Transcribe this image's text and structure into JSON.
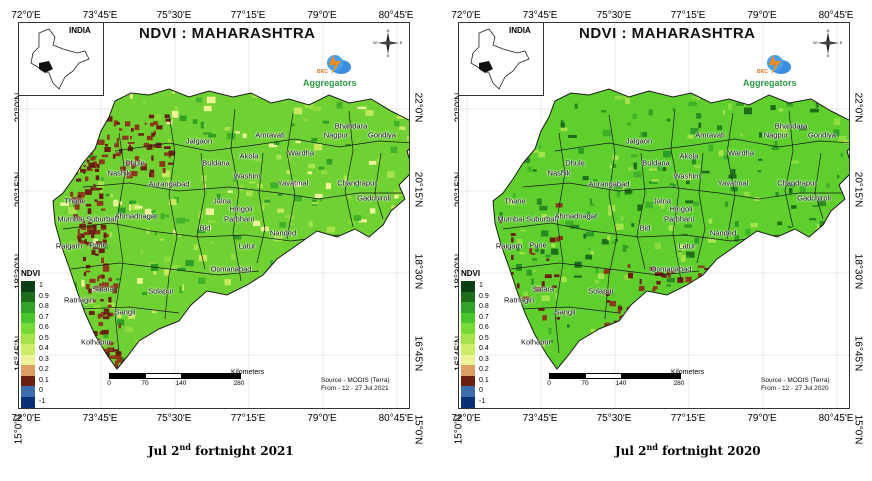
{
  "maps": [
    {
      "title": "NDVI : MAHARASHTRA",
      "inset_label": "INDIA",
      "logo": {
        "top": "BKC",
        "name": "Aggregators"
      },
      "compass_letters": [
        "N",
        "E",
        "S",
        "W"
      ],
      "lon_labels": [
        "72°0'E",
        "73°45'E",
        "75°30'E",
        "77°15'E",
        "79°0'E",
        "80°45'E"
      ],
      "lat_labels": [
        "22°0'N",
        "20°15'N",
        "18°30'N",
        "16°45'N",
        "15°0'N"
      ],
      "legend": {
        "title": "NDVI",
        "entries": [
          {
            "label": "1",
            "color": "#0b3f14"
          },
          {
            "label": "0.9",
            "color": "#1d6d1d"
          },
          {
            "label": "0.8",
            "color": "#32a228"
          },
          {
            "label": "0.7",
            "color": "#4ac62c"
          },
          {
            "label": "0.6",
            "color": "#76d936"
          },
          {
            "label": "0.5",
            "color": "#a6e34a"
          },
          {
            "label": "0.4",
            "color": "#d0ed6a"
          },
          {
            "label": "0.3",
            "color": "#eef39a"
          },
          {
            "label": "0.2",
            "color": "#d9a064"
          },
          {
            "label": "0.1",
            "color": "#6a1f0f"
          },
          {
            "label": "0",
            "color": "#3d6fb0"
          },
          {
            "label": "-1",
            "color": "#0b2f73"
          }
        ]
      },
      "scale": {
        "unit": "Kilometers",
        "ticks": [
          "0",
          "70",
          "140",
          "280"
        ]
      },
      "source": [
        "Source - MODIS (Terra)",
        "From - 12 - 27 Jul 2021"
      ],
      "caption": {
        "prefix": "Jul 2",
        "sup": "nd",
        "suffix": " fortnight 2021"
      },
      "condition": "dry"
    },
    {
      "title": "NDVI : MAHARASHTRA",
      "inset_label": "INDIA",
      "logo": {
        "top": "BKC",
        "name": "Aggregators"
      },
      "compass_letters": [
        "N",
        "E",
        "S",
        "W"
      ],
      "lon_labels": [
        "72°0'E",
        "73°45'E",
        "75°30'E",
        "77°15'E",
        "79°0'E",
        "80°45'E"
      ],
      "lat_labels": [
        "22°0'N",
        "20°15'N",
        "18°30'N",
        "16°45'N",
        "15°0'N"
      ],
      "legend": {
        "title": "NDVI",
        "entries": [
          {
            "label": "1",
            "color": "#0b3f14"
          },
          {
            "label": "0.9",
            "color": "#1d6d1d"
          },
          {
            "label": "0.8",
            "color": "#32a228"
          },
          {
            "label": "0.7",
            "color": "#4ac62c"
          },
          {
            "label": "0.6",
            "color": "#76d936"
          },
          {
            "label": "0.5",
            "color": "#a6e34a"
          },
          {
            "label": "0.4",
            "color": "#d0ed6a"
          },
          {
            "label": "0.3",
            "color": "#eef39a"
          },
          {
            "label": "0.2",
            "color": "#d9a064"
          },
          {
            "label": "0.1",
            "color": "#6a1f0f"
          },
          {
            "label": "0",
            "color": "#3d6fb0"
          },
          {
            "label": "-1",
            "color": "#0b2f73"
          }
        ]
      },
      "scale": {
        "unit": "Kilometers",
        "ticks": [
          "0",
          "70",
          "140",
          "280"
        ]
      },
      "source": [
        "Source - MODIS (Terra)",
        "From - 12 - 27 Jul 2020"
      ],
      "caption": {
        "prefix": "Jul 2",
        "sup": "nd",
        "suffix": " fortnight 2020"
      },
      "condition": "green"
    }
  ],
  "districts": [
    "Bhandara",
    "Nagpur",
    "Gondiya",
    "Amravati",
    "Dhule",
    "Jalgaon",
    "Wardha",
    "Buldana",
    "Akola",
    "Nashik",
    "Washim",
    "Yavatmal",
    "Chandrapur",
    "Aurangabad",
    "Thane",
    "Gadchiroli",
    "Jalna",
    "Hingoli",
    "Mumbai Suburban",
    "Ahmadnagar",
    "Parbhani",
    "Bid",
    "Nanded",
    "Raigarh",
    "Pune",
    "Latur",
    "Osmanabad",
    "Satara",
    "Solapur",
    "Ratnagiri",
    "Sangli",
    "Kolhapur"
  ]
}
